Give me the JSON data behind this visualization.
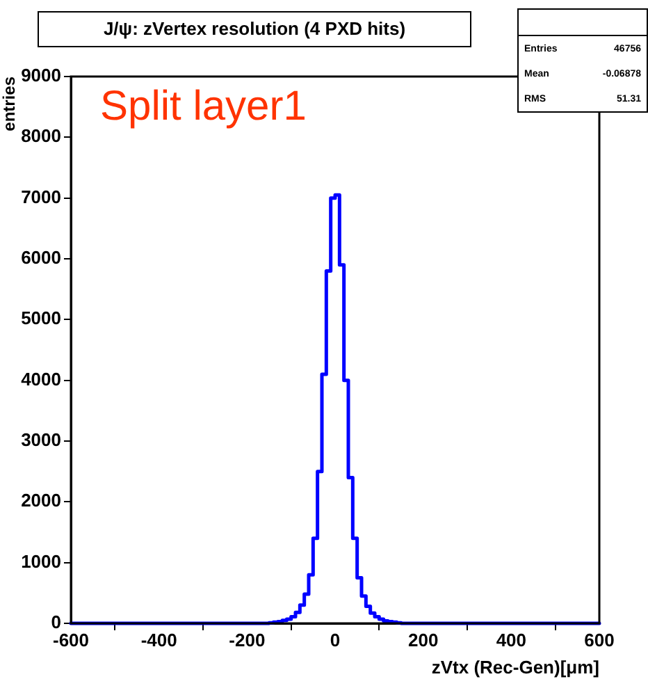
{
  "chart_data": {
    "type": "histogram",
    "title": "J/ψ: zVertex resolution (4 PXD hits)",
    "xlabel": "zVtx (Rec-Gen)[μm]",
    "ylabel": "entries",
    "bins": [
      -600,
      -590,
      -580,
      -570,
      -560,
      -550,
      -540,
      -530,
      -520,
      -510,
      -500,
      -490,
      -480,
      -470,
      -460,
      -450,
      -440,
      -430,
      -420,
      -410,
      -400,
      -390,
      -380,
      -370,
      -360,
      -350,
      -340,
      -330,
      -320,
      -310,
      -300,
      -290,
      -280,
      -270,
      -260,
      -250,
      -240,
      -230,
      -220,
      -210,
      -200,
      -190,
      -180,
      -170,
      -160,
      -150,
      -140,
      -130,
      -120,
      -110,
      -100,
      -90,
      -80,
      -70,
      -60,
      -50,
      -40,
      -30,
      -20,
      -10,
      0,
      10,
      20,
      30,
      40,
      50,
      60,
      70,
      80,
      90,
      100,
      110,
      120,
      130,
      140,
      150,
      160,
      170,
      180,
      190,
      200,
      210,
      220,
      230,
      240,
      250,
      260,
      270,
      280,
      290,
      300,
      310,
      320,
      330,
      340,
      350,
      360,
      370,
      380,
      390,
      400,
      410,
      420,
      430,
      440,
      450,
      460,
      470,
      480,
      490,
      500,
      510,
      520,
      530,
      540,
      550,
      560,
      570,
      580,
      590,
      600
    ],
    "values": [
      0,
      0,
      0,
      0,
      0,
      0,
      0,
      0,
      0,
      0,
      0,
      0,
      0,
      0,
      0,
      0,
      0,
      0,
      0,
      0,
      0,
      0,
      0,
      0,
      0,
      0,
      0,
      0,
      0,
      0,
      0,
      0,
      0,
      0,
      0,
      0,
      0,
      0,
      0,
      0,
      0,
      0,
      0,
      0,
      0,
      10,
      20,
      30,
      50,
      70,
      110,
      180,
      300,
      480,
      800,
      1400,
      2500,
      4100,
      5800,
      7000,
      7050,
      5900,
      4000,
      2400,
      1400,
      750,
      450,
      280,
      170,
      110,
      70,
      40,
      30,
      20,
      10,
      0,
      0,
      0,
      0,
      0,
      0,
      0,
      0,
      0,
      0,
      0,
      0,
      0,
      0,
      0,
      0,
      0,
      0,
      0,
      0,
      0,
      0,
      0,
      0,
      0,
      0,
      0,
      0,
      0,
      0,
      0,
      0,
      0,
      0,
      0,
      0,
      0,
      0,
      0,
      0,
      0,
      0,
      0,
      0,
      0
    ],
    "color": "#0000ff",
    "xlim": [
      -600,
      600
    ],
    "xticks": [
      -600,
      -400,
      -200,
      0,
      200,
      400,
      600
    ],
    "ylim": [
      0,
      9000
    ],
    "yticks": [
      0,
      1000,
      2000,
      3000,
      4000,
      5000,
      6000,
      7000,
      8000,
      9000
    ],
    "grid": false,
    "legend": false,
    "annotations": [
      "Split layer1",
      "Entries",
      "46756",
      "Mean",
      "-0.06878",
      "RMS",
      "51.31"
    ]
  }
}
